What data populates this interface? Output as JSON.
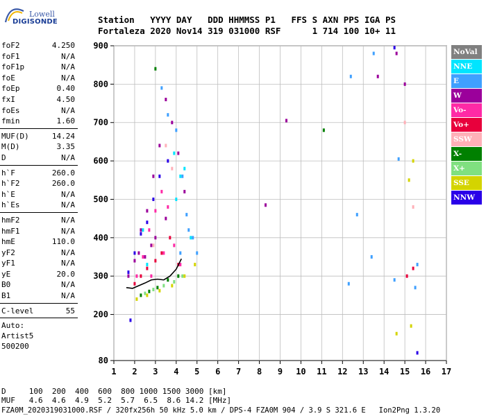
{
  "logo": {
    "line1": "Lowell",
    "line2": "DIGISONDE"
  },
  "header": {
    "row1": [
      "Station",
      "YYYY DAY",
      "DDD HHMMSS P1",
      "FFS S AXN PPS IGA PS"
    ],
    "row2": [
      "Fortaleza",
      "2020 Nov14",
      "319 031000 RSF",
      "1 714 100 10+ 11"
    ]
  },
  "scaled": {
    "group1": [
      {
        "k": "foF2",
        "v": "4.250"
      },
      {
        "k": "foF1",
        "v": "N/A"
      },
      {
        "k": "foF1p",
        "v": "N/A"
      },
      {
        "k": "foE",
        "v": "N/A"
      },
      {
        "k": "foEp",
        "v": "0.40"
      },
      {
        "k": "fxI",
        "v": "4.50"
      },
      {
        "k": "foEs",
        "v": "N/A"
      },
      {
        "k": "fmin",
        "v": "1.60"
      }
    ],
    "group2": [
      {
        "k": "MUF(D)",
        "v": "14.24"
      },
      {
        "k": "M(D)",
        "v": "3.35"
      },
      {
        "k": "D",
        "v": "N/A"
      }
    ],
    "group3": [
      {
        "k": "h`F",
        "v": "260.0"
      },
      {
        "k": "h`F2",
        "v": "260.0"
      },
      {
        "k": "h`E",
        "v": "N/A"
      },
      {
        "k": "h`Es",
        "v": "N/A"
      }
    ],
    "group4": [
      {
        "k": "hmF2",
        "v": "N/A"
      },
      {
        "k": "hmF1",
        "v": "N/A"
      },
      {
        "k": "hmE",
        "v": "110.0"
      },
      {
        "k": "yF2",
        "v": "N/A"
      },
      {
        "k": "yF1",
        "v": "N/A"
      },
      {
        "k": "yE",
        "v": "20.0"
      },
      {
        "k": "B0",
        "v": "N/A"
      },
      {
        "k": "B1",
        "v": "N/A"
      }
    ],
    "group5": [
      {
        "k": "C-level",
        "v": "55"
      }
    ],
    "auto": [
      "Auto:",
      "Artist5",
      "500200"
    ]
  },
  "footer": {
    "d_row": "D     100  200  400  600  800 1000 1500 3000 [km]",
    "muf_row": "MUF   4.6  4.6  4.9  5.2  5.7  6.5  8.6 14.2 [MHz]",
    "file_row": "FZA0M_2020319031000.RSF / 320fx256h 50 kHz 5.0 km / DPS-4 FZA0M 904 / 3.9 S 321.6 E   Ion2Png 1.3.20"
  },
  "legend": [
    {
      "label": "NoVal",
      "color": "#808080"
    },
    {
      "label": "NNE",
      "color": "#00e5ff"
    },
    {
      "label": "E",
      "color": "#3fa0ff"
    },
    {
      "label": "W",
      "color": "#9b009b"
    },
    {
      "label": "Vo-",
      "color": "#ff2aa6"
    },
    {
      "label": "Vo+",
      "color": "#e8003c"
    },
    {
      "label": "SSW",
      "color": "#ffb0b8"
    },
    {
      "label": "X-",
      "color": "#008000"
    },
    {
      "label": "X+",
      "color": "#80e080"
    },
    {
      "label": "SSE",
      "color": "#d4d400"
    },
    {
      "label": "NNW",
      "color": "#2a00e8"
    }
  ],
  "chart_data": {
    "type": "scatter",
    "title": "",
    "xlabel": "",
    "ylabel": "",
    "x_ticks": [
      1,
      2,
      3,
      4,
      5,
      6,
      7,
      8,
      9,
      10,
      11,
      12,
      13,
      14,
      15,
      16,
      17
    ],
    "y_ticks": [
      80,
      200,
      300,
      400,
      500,
      600,
      700,
      800,
      900
    ],
    "xlim": [
      1,
      17
    ],
    "ylim": [
      80,
      900
    ],
    "grid": true,
    "legend_placement": "right",
    "trace_color": "#000000",
    "trace": [
      [
        1.6,
        270
      ],
      [
        1.9,
        268
      ],
      [
        2.2,
        275
      ],
      [
        2.5,
        282
      ],
      [
        2.8,
        290
      ],
      [
        3.1,
        292
      ],
      [
        3.4,
        290
      ],
      [
        3.7,
        300
      ],
      [
        4.0,
        318
      ],
      [
        4.25,
        345
      ]
    ],
    "traces": [
      {
        "name": "W",
        "points": [
          [
            1.7,
            300
          ],
          [
            2.0,
            340
          ],
          [
            2.3,
            420
          ],
          [
            2.6,
            470
          ],
          [
            2.9,
            560
          ],
          [
            3.2,
            640
          ],
          [
            3.5,
            760
          ],
          [
            3.8,
            700
          ],
          [
            4.1,
            620
          ],
          [
            4.4,
            520
          ],
          [
            2.5,
            350
          ],
          [
            3.0,
            400
          ],
          [
            3.5,
            450
          ],
          [
            2.2,
            360
          ],
          [
            2.8,
            380
          ],
          [
            15.0,
            800
          ],
          [
            14.6,
            880
          ],
          [
            13.7,
            820
          ],
          [
            9.3,
            705
          ],
          [
            8.3,
            485
          ]
        ]
      },
      {
        "name": "E",
        "points": [
          [
            3.3,
            790
          ],
          [
            3.6,
            720
          ],
          [
            4.0,
            680
          ],
          [
            4.3,
            560
          ],
          [
            4.6,
            420
          ],
          [
            5.0,
            360
          ],
          [
            4.8,
            400
          ],
          [
            4.5,
            460
          ],
          [
            4.2,
            360
          ],
          [
            12.3,
            280
          ],
          [
            12.4,
            820
          ],
          [
            12.7,
            460
          ],
          [
            13.4,
            350
          ],
          [
            14.5,
            290
          ],
          [
            15.5,
            270
          ],
          [
            15.6,
            330
          ],
          [
            13.5,
            880
          ],
          [
            14.7,
            605
          ]
        ]
      },
      {
        "name": "NNE",
        "points": [
          [
            3.9,
            620
          ],
          [
            4.2,
            560
          ],
          [
            4.4,
            580
          ],
          [
            4.0,
            500
          ],
          [
            4.7,
            400
          ],
          [
            2.4,
            420
          ],
          [
            2.6,
            330
          ]
        ]
      },
      {
        "name": "Vo-",
        "points": [
          [
            2.1,
            300
          ],
          [
            2.4,
            350
          ],
          [
            2.7,
            420
          ],
          [
            3.0,
            470
          ],
          [
            3.3,
            520
          ],
          [
            3.6,
            480
          ],
          [
            3.9,
            380
          ],
          [
            4.2,
            330
          ],
          [
            2.8,
            300
          ],
          [
            3.4,
            360
          ]
        ]
      },
      {
        "name": "Vo+",
        "points": [
          [
            2.0,
            280
          ],
          [
            2.3,
            300
          ],
          [
            2.6,
            320
          ],
          [
            3.0,
            340
          ],
          [
            3.3,
            360
          ],
          [
            3.7,
            400
          ],
          [
            4.1,
            330
          ],
          [
            15.1,
            300
          ],
          [
            15.4,
            320
          ]
        ]
      },
      {
        "name": "SSW",
        "points": [
          [
            3.5,
            640
          ],
          [
            3.8,
            580
          ],
          [
            2.9,
            380
          ],
          [
            15.4,
            480
          ],
          [
            15.0,
            700
          ]
        ]
      },
      {
        "name": "X-",
        "points": [
          [
            2.3,
            250
          ],
          [
            2.7,
            260
          ],
          [
            3.1,
            270
          ],
          [
            3.6,
            290
          ],
          [
            4.1,
            300
          ],
          [
            11.1,
            680
          ],
          [
            3.0,
            840
          ]
        ]
      },
      {
        "name": "X+",
        "points": [
          [
            2.5,
            255
          ],
          [
            2.9,
            265
          ],
          [
            3.4,
            275
          ],
          [
            3.9,
            285
          ],
          [
            4.3,
            300
          ]
        ]
      },
      {
        "name": "SSE",
        "points": [
          [
            2.1,
            240
          ],
          [
            2.6,
            250
          ],
          [
            3.2,
            262
          ],
          [
            3.8,
            275
          ],
          [
            4.4,
            300
          ],
          [
            4.9,
            330
          ],
          [
            15.4,
            600
          ],
          [
            15.2,
            550
          ],
          [
            14.6,
            150
          ],
          [
            15.3,
            170
          ]
        ]
      },
      {
        "name": "NNW",
        "points": [
          [
            1.7,
            310
          ],
          [
            2.0,
            360
          ],
          [
            2.3,
            410
          ],
          [
            2.6,
            440
          ],
          [
            2.9,
            500
          ],
          [
            3.2,
            560
          ],
          [
            1.8,
            185
          ],
          [
            3.6,
            600
          ],
          [
            14.5,
            895
          ],
          [
            15.6,
            100
          ]
        ]
      }
    ]
  }
}
